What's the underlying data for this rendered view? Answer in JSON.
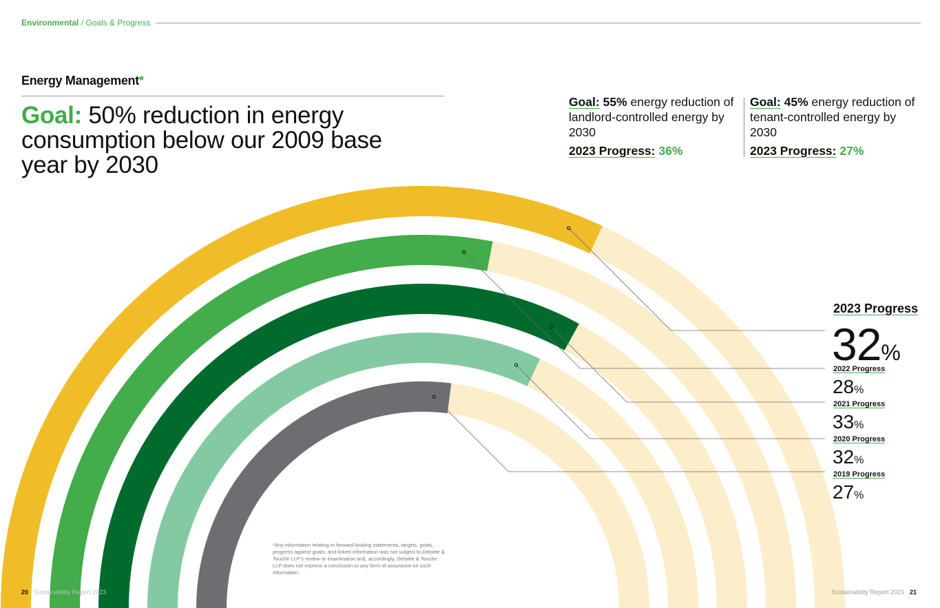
{
  "header": {
    "section": "Environmental",
    "separator": " / ",
    "subsection": "Goals & Progress"
  },
  "title": {
    "text": "Energy Management",
    "marker": "*"
  },
  "main_goal": {
    "label": "Goal:",
    "text": " 50% reduction in energy consumption below our 2009 base year by 2030"
  },
  "goals": [
    {
      "goal_label": "Goal:",
      "percent": "55%",
      "text": " energy reduction of landlord-controlled energy by 2030",
      "progress_label": "2023 Progress:",
      "progress_value": "36%"
    },
    {
      "goal_label": "Goal:",
      "percent": "45%",
      "text": " energy reduction of tenant-controlled energy by 2030",
      "progress_label": "2023 Progress:",
      "progress_value": "27%"
    }
  ],
  "chart_data": {
    "type": "radial-bar",
    "unit": "%",
    "scale_max_percent": 50,
    "series": [
      {
        "year": "2023",
        "label": "2023 Progress",
        "value": 32,
        "color": "#f0bd29"
      },
      {
        "year": "2022",
        "label": "2022 Progress",
        "value": 28,
        "color": "#42ad4a"
      },
      {
        "year": "2021",
        "label": "2021 Progress",
        "value": 33,
        "color": "#016b2e"
      },
      {
        "year": "2020",
        "label": "2020 Progress",
        "value": 32,
        "color": "#83caa3"
      },
      {
        "year": "2019",
        "label": "2019 Progress",
        "value": 27,
        "color": "#6d6e71"
      }
    ],
    "track_color": "#fcedcb"
  },
  "footnote": "*Any information relating to forward-looking statements, targets, goals, progress against goals, and linked information was not subject to Deloitte & Touche LLP’s review or examination and, accordingly, Deloitte & Touche LLP does not express a conclusion or any form of assurance on such information.",
  "footer": {
    "left_page": "20",
    "left_text": "Sustainability Report 2023",
    "right_text": "Sustainability Report 2023",
    "right_page": "21"
  }
}
